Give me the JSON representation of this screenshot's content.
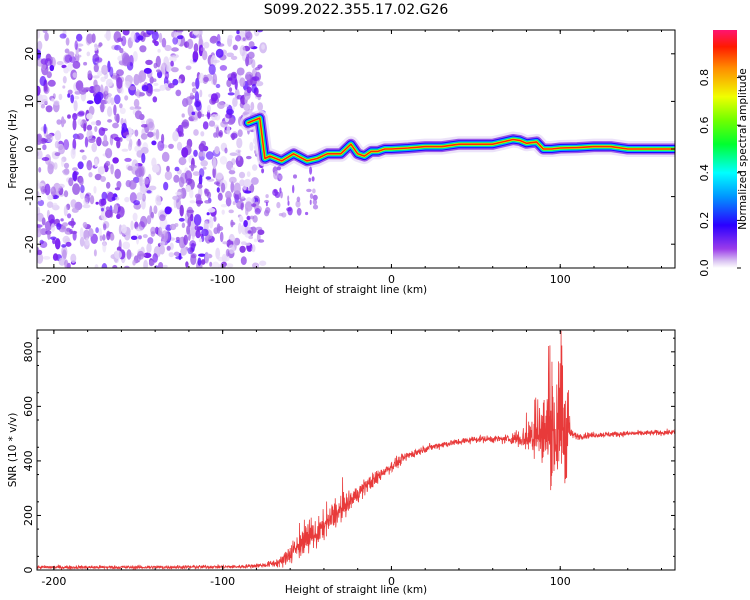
{
  "chart_data": [
    {
      "type": "heatmap",
      "title": "S099.2022.355.17.02.G26",
      "xlabel": "Height of straight line (km)",
      "ylabel": "Frequency (Hz)",
      "xlim": [
        -210,
        168
      ],
      "ylim": [
        -25,
        25
      ],
      "xticks": [
        -200,
        -100,
        0,
        100
      ],
      "yticks": [
        20,
        10,
        0,
        -10,
        -20
      ],
      "colorbar": {
        "label": "Normalized spectral amplitude",
        "range": [
          0.0,
          1.0
        ],
        "ticks": [
          "0.0",
          "0.2",
          "0.4",
          "0.6",
          "0.8"
        ]
      },
      "noise_region_x": [
        -210,
        -76
      ],
      "signal_ridge": {
        "x": [
          -85,
          -78,
          -75,
          -72,
          -65,
          -58,
          -50,
          -44,
          -38,
          -30,
          -24,
          -20,
          -16,
          -12,
          -8,
          -4,
          0,
          10,
          20,
          30,
          40,
          50,
          60,
          66,
          72,
          76,
          80,
          86,
          90,
          95,
          100,
          110,
          120,
          130,
          140,
          150,
          168
        ],
        "y": [
          5.5,
          6.5,
          -2,
          -1.5,
          -2.5,
          -1,
          -2.5,
          -2,
          -1,
          -1,
          1,
          -1,
          -1.5,
          -0.5,
          -0.5,
          0,
          0,
          0.2,
          0.5,
          0.5,
          1,
          1,
          1,
          1.5,
          2,
          1.8,
          1.2,
          1.5,
          0,
          0,
          0.2,
          0.3,
          0.5,
          0.5,
          0,
          0,
          0
        ]
      }
    },
    {
      "type": "line",
      "title": "",
      "xlabel": "Height of straight line (km)",
      "ylabel": "SNR (10 * v/v)",
      "xlim": [
        -210,
        168
      ],
      "ylim": [
        0,
        880
      ],
      "xticks": [
        -200,
        -100,
        0,
        100
      ],
      "yticks": [
        0,
        200,
        400,
        600,
        800
      ],
      "line_color": "#e83a3a",
      "series": [
        {
          "x": [
            -210,
            -150,
            -90,
            -75,
            -65,
            -60,
            -55,
            -50,
            -45,
            -40,
            -35,
            -30,
            -25,
            -20,
            -15,
            -10,
            -5,
            0,
            10,
            20,
            30,
            40,
            50,
            60,
            70,
            75,
            80,
            85,
            90,
            95,
            100,
            102,
            104,
            106,
            110,
            120,
            140,
            168
          ],
          "values": [
            10,
            10,
            12,
            18,
            30,
            60,
            90,
            110,
            130,
            160,
            190,
            220,
            250,
            280,
            310,
            330,
            360,
            380,
            420,
            445,
            460,
            470,
            480,
            480,
            480,
            485,
            480,
            490,
            500,
            500,
            520,
            540,
            560,
            500,
            490,
            495,
            500,
            505
          ],
          "volatility": [
            8,
            8,
            8,
            10,
            25,
            50,
            60,
            60,
            60,
            60,
            60,
            50,
            40,
            40,
            35,
            35,
            30,
            25,
            20,
            15,
            15,
            15,
            15,
            15,
            20,
            40,
            60,
            100,
            160,
            200,
            280,
            320,
            280,
            20,
            15,
            12,
            12,
            12
          ]
        }
      ]
    }
  ]
}
